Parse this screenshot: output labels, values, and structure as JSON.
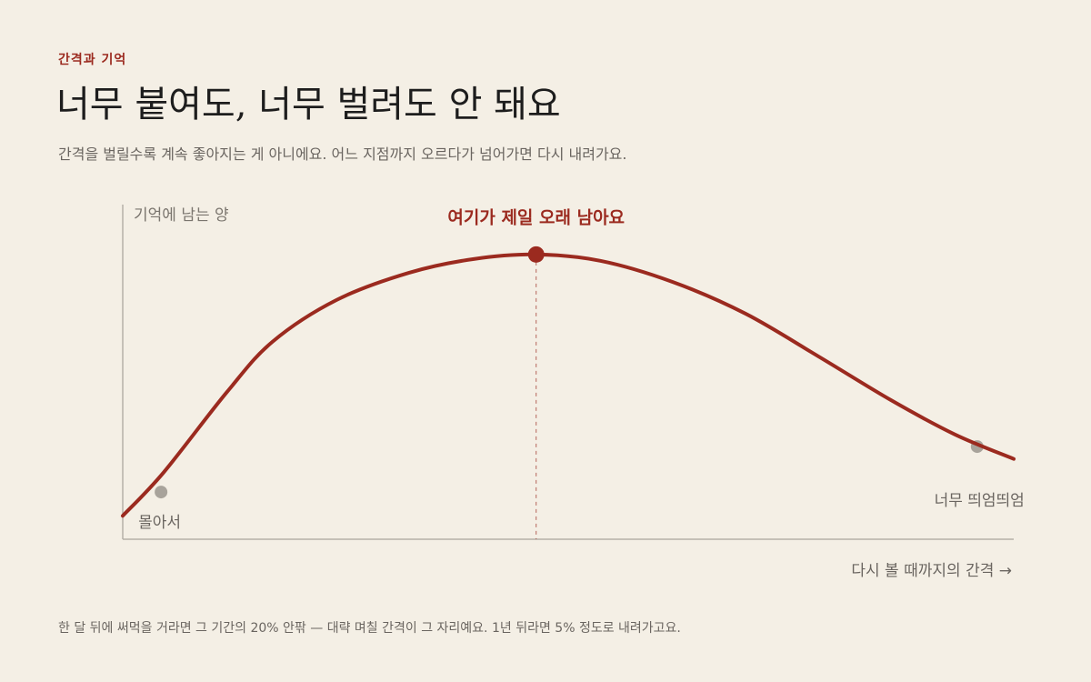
{
  "header": {
    "kicker": "간격과 기억",
    "title": "너무 붙여도, 너무 벌려도 안 돼요",
    "subtitle": "간격을 벌릴수록 계속 좋아지는 게 아니에요. 어느 지점까지 오르다가 넘어가면 다시 내려가요."
  },
  "chart_data": {
    "type": "line",
    "y_label": "기억에 남는 양",
    "x_label": "다시 볼 때까지의 간격 →",
    "xlim": [
      0,
      100
    ],
    "ylim": [
      0,
      100
    ],
    "x": [
      0,
      4.6,
      11.7,
      16.8,
      24,
      32.1,
      39.3,
      46.4,
      53.6,
      61.7,
      69.9,
      78.1,
      86.2,
      93.4,
      100
    ],
    "series": [
      {
        "color": "#9b2a1f",
        "values": [
          7,
          20,
          44,
          59,
          71.5,
          79.6,
          83.7,
          85.1,
          83.2,
          76.9,
          67.4,
          54.6,
          41.6,
          31.3,
          24
        ]
      }
    ],
    "peak": {
      "x": 46.4,
      "y": 85.1,
      "label": "여기가 제일 오래 남아요",
      "color": "#9b2a1f"
    },
    "markers": [
      {
        "x": 4.3,
        "y": 14.1,
        "label": "몰아서",
        "color": "#a8a39b"
      },
      {
        "x": 95.9,
        "y": 27.7,
        "label": "너무 띄엄띄엄",
        "color": "#a8a39b"
      }
    ]
  },
  "footnote": "한 달 뒤에 써먹을 거라면 그 기간의 20% 안팎 — 대략 며칠 간격이 그 자리예요. 1년 뒤라면 5% 정도로 내려가고요."
}
